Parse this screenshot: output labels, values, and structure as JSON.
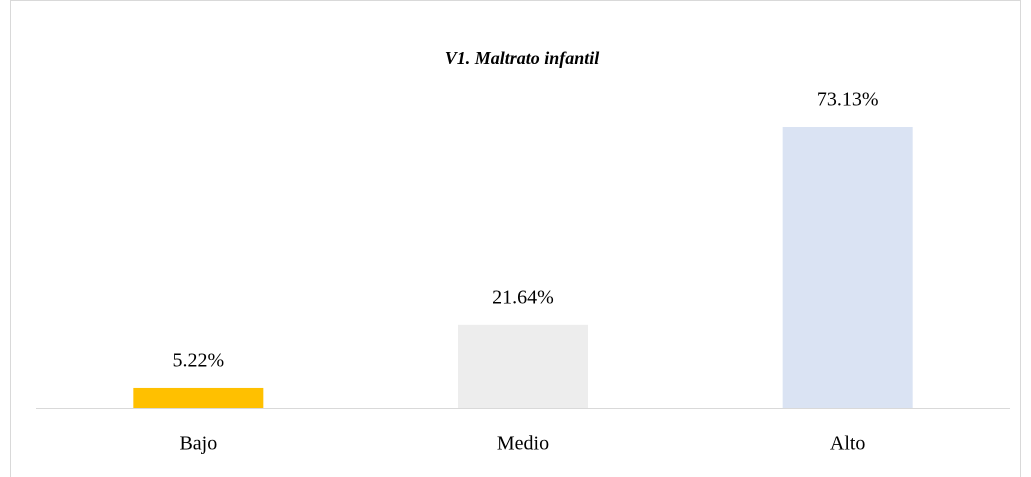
{
  "chart_data": {
    "type": "bar",
    "title": "V1. Maltrato infantil",
    "categories": [
      "Bajo",
      "Medio",
      "Alto"
    ],
    "values": [
      5.22,
      21.64,
      73.13
    ],
    "value_labels": [
      "5.22%",
      "21.64%",
      "73.13%"
    ],
    "colors": [
      "#ffc000",
      "#ededed",
      "#dae3f3"
    ]
  }
}
